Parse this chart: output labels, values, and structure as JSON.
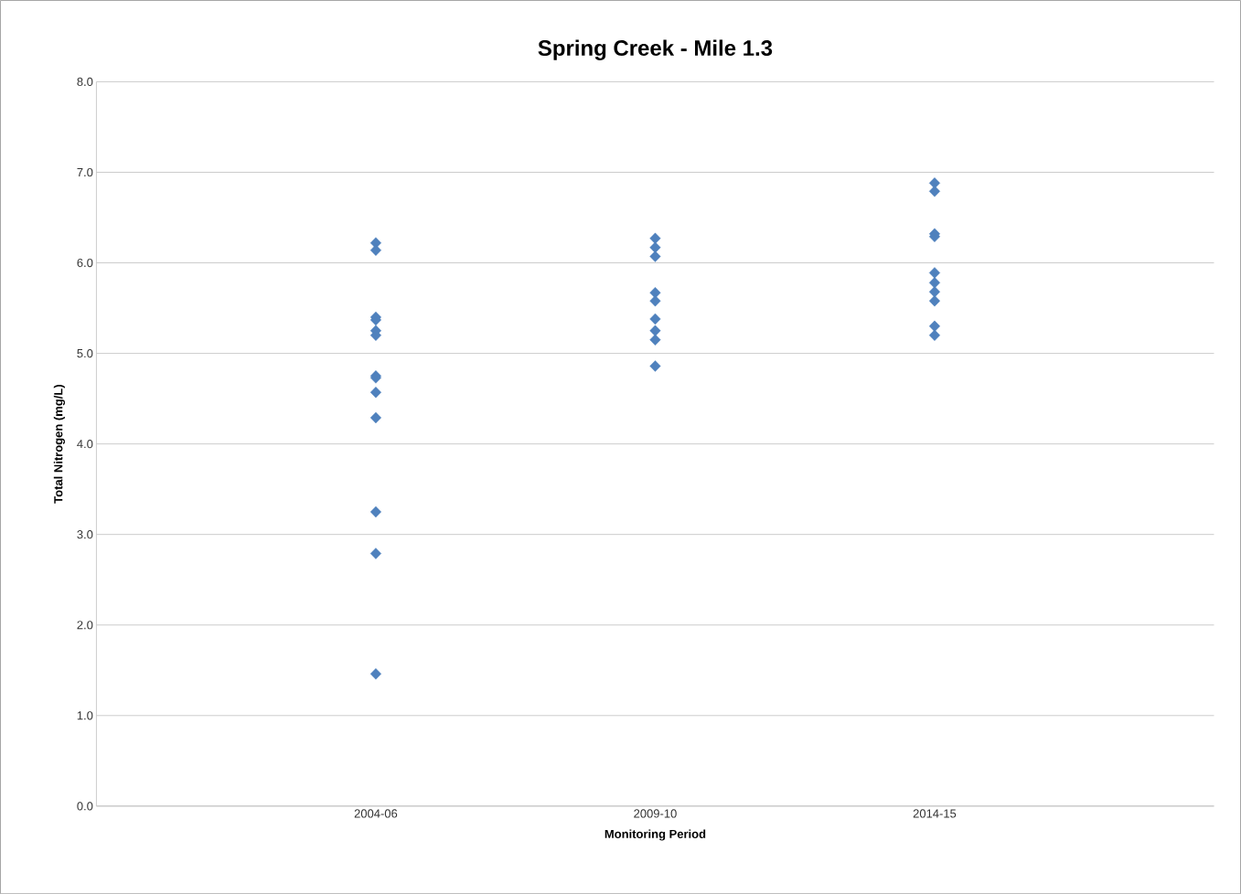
{
  "chart_data": {
    "type": "scatter",
    "title": "Spring Creek - Mile 1.3",
    "xlabel": "Monitoring Period",
    "ylabel": "Total Nitrogen (mg/L)",
    "categories": [
      "2004-06",
      "2009-10",
      "2014-15"
    ],
    "series": [
      {
        "color": "#4f81bd",
        "values": [
          6.22,
          6.27,
          6.88
        ]
      },
      {
        "color": "#4f81bd",
        "values": [
          6.14,
          6.17,
          6.79
        ]
      },
      {
        "color": "#4f81bd",
        "values": [
          5.4,
          6.07,
          6.32
        ]
      },
      {
        "color": "#4f81bd",
        "values": [
          5.37,
          5.67,
          6.29
        ]
      },
      {
        "color": "#4f81bd",
        "values": [
          5.25,
          5.58,
          5.89
        ]
      },
      {
        "color": "#4f81bd",
        "values": [
          5.2,
          5.38,
          5.78
        ]
      },
      {
        "color": "#4f81bd",
        "values": [
          4.75,
          5.25,
          5.68
        ]
      },
      {
        "color": "#4f81bd",
        "values": [
          4.73,
          5.15,
          5.58
        ]
      },
      {
        "color": "#4f81bd",
        "values": [
          4.57,
          4.86,
          5.3
        ]
      },
      {
        "color": "#4f81bd",
        "values": [
          4.29,
          null,
          5.2
        ]
      },
      {
        "color": "#4f81bd",
        "values": [
          3.25,
          null,
          null
        ]
      },
      {
        "color": "#4f81bd",
        "values": [
          2.79,
          null,
          null
        ]
      },
      {
        "color": "#4f81bd",
        "values": [
          1.46,
          null,
          null
        ]
      }
    ],
    "ylim": [
      0,
      8
    ],
    "yticks": [
      {
        "value": 0,
        "label": "0.0"
      },
      {
        "value": 1,
        "label": "1.0"
      },
      {
        "value": 2,
        "label": "2.0"
      },
      {
        "value": 3,
        "label": "3.0"
      },
      {
        "value": 4,
        "label": "4.0"
      },
      {
        "value": 5,
        "label": "5.0"
      },
      {
        "value": 6,
        "label": "6.0"
      },
      {
        "value": 7,
        "label": "7.0"
      },
      {
        "value": 8,
        "label": "8.0"
      }
    ],
    "grid": "y",
    "marker": "diamond"
  }
}
